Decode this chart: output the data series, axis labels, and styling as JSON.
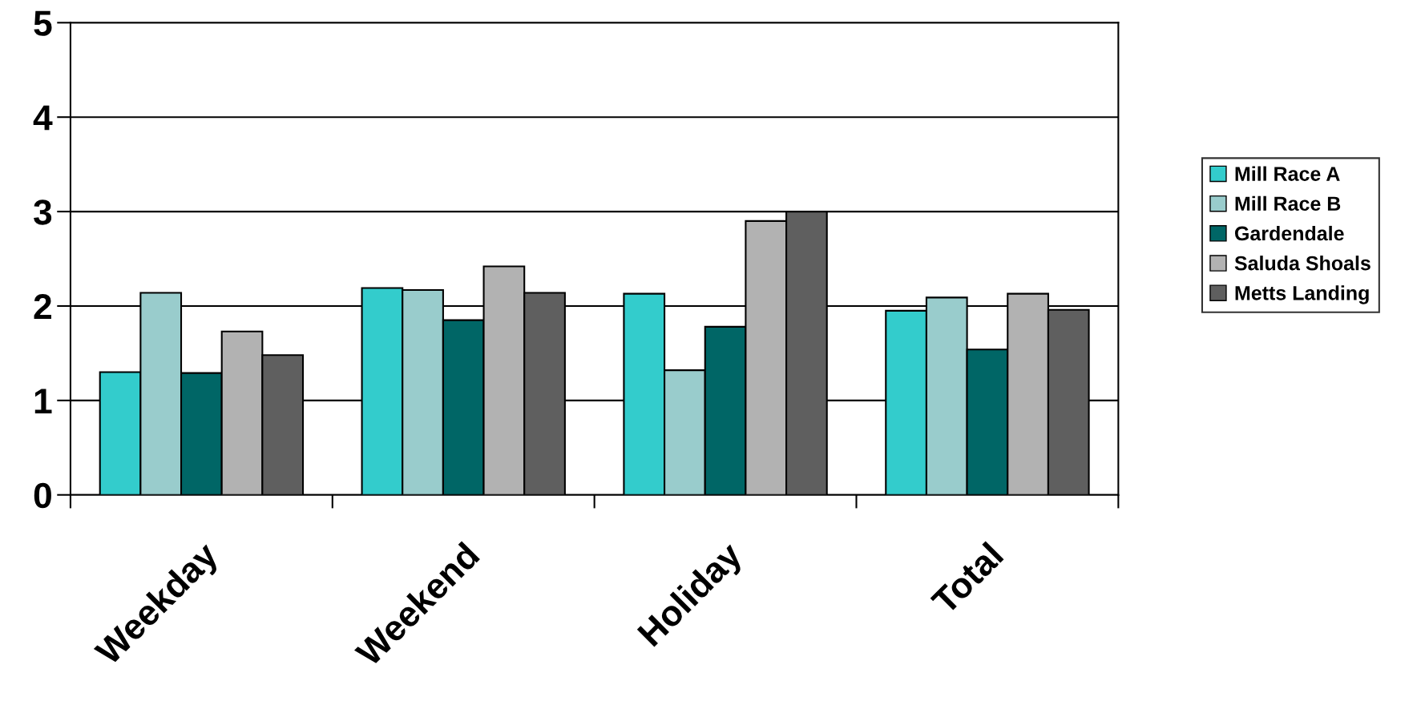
{
  "chart_data": {
    "type": "bar",
    "categories": [
      "Weekday",
      "Weekend",
      "Holiday",
      "Total"
    ],
    "series": [
      {
        "name": "Mill Race A",
        "color": "#33cccc",
        "values": [
          1.3,
          2.19,
          2.13,
          1.95
        ]
      },
      {
        "name": "Mill Race B",
        "color": "#99cccc",
        "values": [
          2.14,
          2.17,
          1.32,
          2.09
        ]
      },
      {
        "name": "Gardendale",
        "color": "#006666",
        "values": [
          1.29,
          1.85,
          1.78,
          1.54
        ]
      },
      {
        "name": "Saluda Shoals",
        "color": "#b2b2b2",
        "values": [
          1.73,
          2.42,
          2.9,
          2.13
        ]
      },
      {
        "name": "Metts Landing",
        "color": "#5f5f5f",
        "values": [
          1.48,
          2.14,
          3.0,
          1.96
        ]
      }
    ],
    "ylim": [
      0,
      5
    ],
    "yticks": [
      0,
      1,
      2,
      3,
      4,
      5
    ],
    "grid": "y",
    "legend": "right"
  }
}
